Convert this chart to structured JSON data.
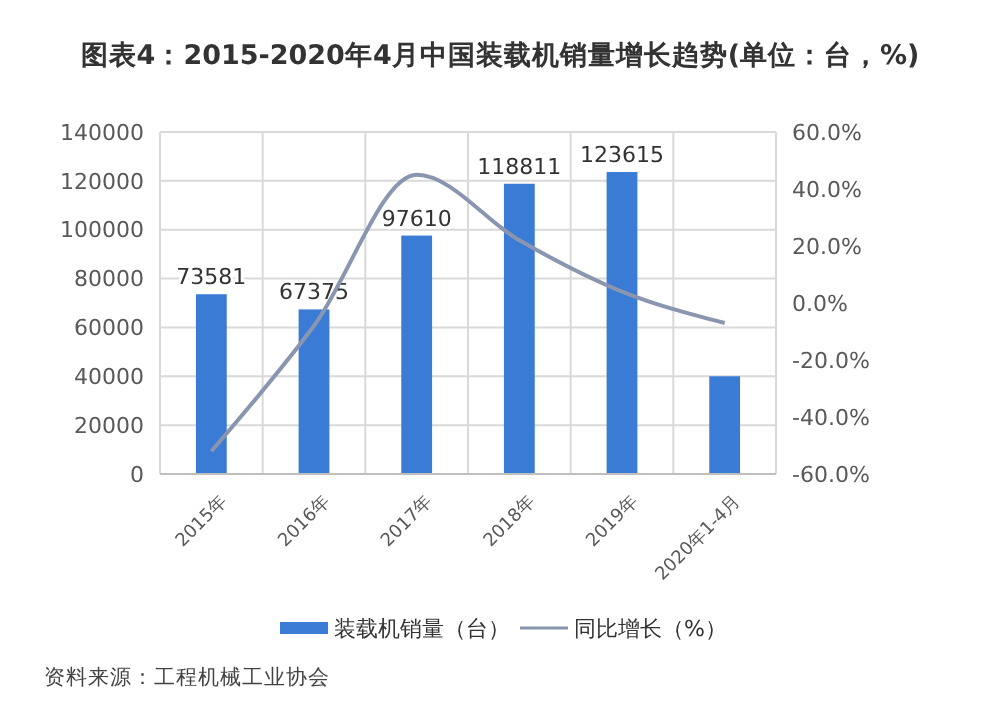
{
  "chart_data": {
    "type": "bar",
    "title": "图表4：2015-2020年4月中国装载机销量增长趋势(单位：台，%)",
    "categories": [
      "2015年",
      "2016年",
      "2017年",
      "2018年",
      "2019年",
      "2020年1-4月"
    ],
    "series": [
      {
        "name": "装载机销量（台）",
        "color": "#3a7bd5",
        "values": [
          73581,
          67375,
          97610,
          118811,
          123615,
          40000
        ],
        "value_labels": [
          "73581",
          "67375",
          "97610",
          "118811",
          "123615",
          null
        ]
      },
      {
        "name": "同比增长（%）",
        "type": "line",
        "axis": "y2",
        "color": "#8a95b0",
        "values": [
          -52,
          -8,
          45,
          22,
          4,
          -7
        ]
      }
    ],
    "ylim": [
      0,
      140000
    ],
    "yticks": [
      0,
      20000,
      40000,
      60000,
      80000,
      100000,
      120000,
      140000
    ],
    "y2lim": [
      -60,
      60
    ],
    "y2ticks": [
      {
        "value": -60,
        "label": "-60.0%"
      },
      {
        "value": -40,
        "label": "-40.0%"
      },
      {
        "value": -20,
        "label": "-20.0%"
      },
      {
        "value": 0,
        "label": "0.0%"
      },
      {
        "value": 20,
        "label": "20.0%"
      },
      {
        "value": 40,
        "label": "40.0%"
      },
      {
        "value": 60,
        "label": "60.0%"
      }
    ],
    "grid": true,
    "legend": "bottom",
    "marker": "none",
    "annotations": [
      "资料来源：工程机械工业协会"
    ]
  }
}
